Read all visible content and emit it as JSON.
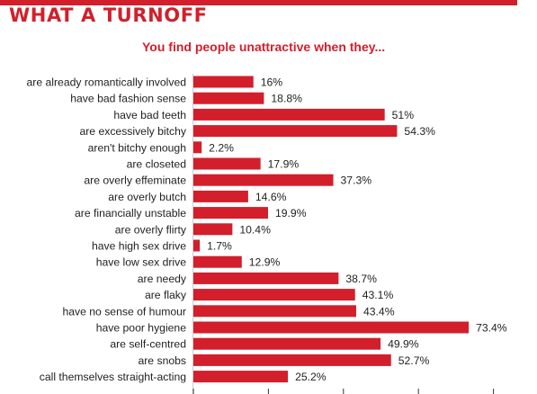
{
  "title": "WHAT A TURNOFF",
  "subtitle": "You find people unattractive when they...",
  "colors": {
    "accent": "#d21f2b",
    "bar": "#d21f2b",
    "text": "#222222"
  },
  "chart_data": {
    "type": "bar",
    "orientation": "horizontal",
    "title": "WHAT A TURNOFF",
    "subtitle": "You find people unattractive when they...",
    "categories": [
      "are already romantically involved",
      "have bad fashion sense",
      "have bad teeth",
      "are excessively bitchy",
      "aren't bitchy enough",
      "are closeted",
      "are overly effeminate",
      "are overly butch",
      "are financially unstable",
      "are overly flirty",
      "have high sex drive",
      "have low sex drive",
      "are needy",
      "are flaky",
      "have no sense of humour",
      "have poor hygiene",
      "are self-centred",
      "are snobs",
      "call themselves straight-acting"
    ],
    "values": [
      16,
      18.8,
      51,
      54.3,
      2.2,
      17.9,
      37.3,
      14.6,
      19.9,
      10.4,
      1.7,
      12.9,
      38.7,
      43.1,
      43.4,
      73.4,
      49.9,
      52.7,
      25.2
    ],
    "value_labels": [
      "16%",
      "18.8%",
      "51%",
      "54.3%",
      "2.2%",
      "17.9%",
      "37.3%",
      "14.6%",
      "19.9%",
      "10.4%",
      "1.7%",
      "12.9%",
      "38.7%",
      "43.1%",
      "43.4%",
      "73.4%",
      "49.9%",
      "52.7%",
      "25.2%"
    ],
    "xlim": [
      0,
      80
    ],
    "unit": "%",
    "grid": false,
    "legend": "none"
  }
}
